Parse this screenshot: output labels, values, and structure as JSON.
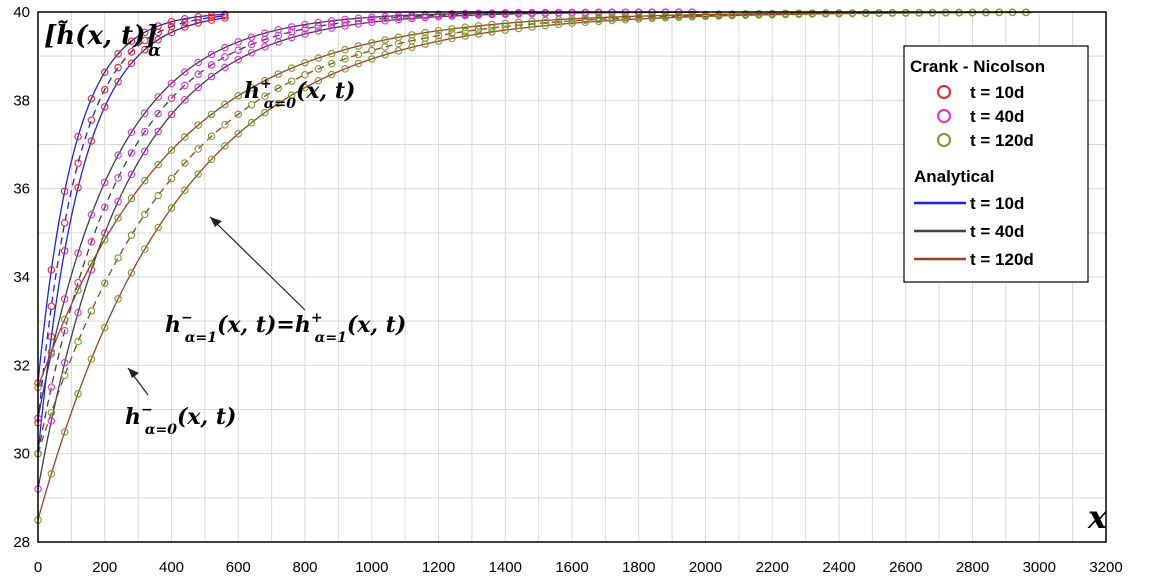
{
  "chart_data": {
    "type": "line",
    "title": "",
    "ylabel": "[h̃(x, t)]α",
    "xlabel": "x",
    "xlim": [
      0,
      3200
    ],
    "ylim": [
      28,
      40
    ],
    "x_ticks": [
      0,
      200,
      400,
      600,
      800,
      1000,
      1200,
      1400,
      1600,
      1800,
      2000,
      2200,
      2400,
      2600,
      2800,
      3000,
      3200
    ],
    "y_ticks": [
      28,
      30,
      32,
      34,
      36,
      38,
      40
    ],
    "grid": true,
    "legend_position": "right",
    "legend": {
      "cn_title": "Crank - Nicolson",
      "cn_items": [
        {
          "label": "t = 10d",
          "color": "#e8262b"
        },
        {
          "label": "t = 40d",
          "color": "#e02de0"
        },
        {
          "label": "t = 120d",
          "color": "#7a9a2e"
        }
      ],
      "an_title": "Analytical",
      "an_items": [
        {
          "label": "t = 10d",
          "color": "#1f1ff0"
        },
        {
          "label": "t = 40d",
          "color": "#404040"
        },
        {
          "label": "t = 120d",
          "color": "#a0401c"
        }
      ]
    },
    "series": [
      {
        "name": "t = 10d",
        "alpha": "α=0 lower",
        "h0": 30.0,
        "L": 130,
        "xmax": 560,
        "color": "#1f1ff0",
        "marker": "#e8262b",
        "dash": false,
        "mstep": 40
      },
      {
        "name": "t = 10d",
        "alpha": "α=1",
        "h0": 30.7,
        "L": 120,
        "xmax": 560,
        "color": "#1f1ff0",
        "marker": "#e8262b",
        "dash": true,
        "mstep": 40
      },
      {
        "name": "t = 10d",
        "alpha": "α=0 upper",
        "h0": 31.6,
        "L": 110,
        "xmax": 560,
        "color": "#1f1ff0",
        "marker": "#e8262b",
        "dash": false,
        "mstep": 40
      },
      {
        "name": "t = 40d",
        "alpha": "α=0 lower",
        "h0": 29.2,
        "L": 260,
        "xmax": 1980,
        "color": "#404040",
        "marker": "#e02de0",
        "dash": false,
        "mstep": 40
      },
      {
        "name": "t = 40d",
        "alpha": "α=1",
        "h0": 30.0,
        "L": 245,
        "xmax": 1980,
        "color": "#404040",
        "marker": "#e02de0",
        "dash": true,
        "mstep": 40
      },
      {
        "name": "t = 40d",
        "alpha": "α=0 upper",
        "h0": 30.8,
        "L": 230,
        "xmax": 1980,
        "color": "#404040",
        "marker": "#e02de0",
        "dash": false,
        "mstep": 40
      },
      {
        "name": "t = 120d",
        "alpha": "α=0 lower",
        "h0": 28.5,
        "L": 420,
        "xmax": 2980,
        "color": "#a0401c",
        "marker": "#7a9a2e",
        "dash": false,
        "mstep": 40
      },
      {
        "name": "t = 120d",
        "alpha": "α=1",
        "h0": 30.0,
        "L": 410,
        "xmax": 2980,
        "color": "#a0401c",
        "marker": "#7a9a2e",
        "dash": true,
        "mstep": 40
      },
      {
        "name": "t = 120d",
        "alpha": "α=0 upper",
        "h0": 31.5,
        "L": 400,
        "xmax": 2980,
        "color": "#a0401c",
        "marker": "#7a9a2e",
        "dash": false,
        "mstep": 40
      }
    ],
    "annotations": [
      {
        "text_base": "h",
        "sup": "+",
        "sub": "α=0",
        "args": "(x, t)"
      },
      {
        "text_base": "h",
        "sup": "−",
        "sub": "α=1",
        "args": "(x, t)=h",
        "sup2": "+",
        "sub2": "α=1",
        "args2": "(x, t)"
      },
      {
        "text_base": "h",
        "sup": "−",
        "sub": "α=0",
        "args": "(x, t)"
      }
    ]
  }
}
